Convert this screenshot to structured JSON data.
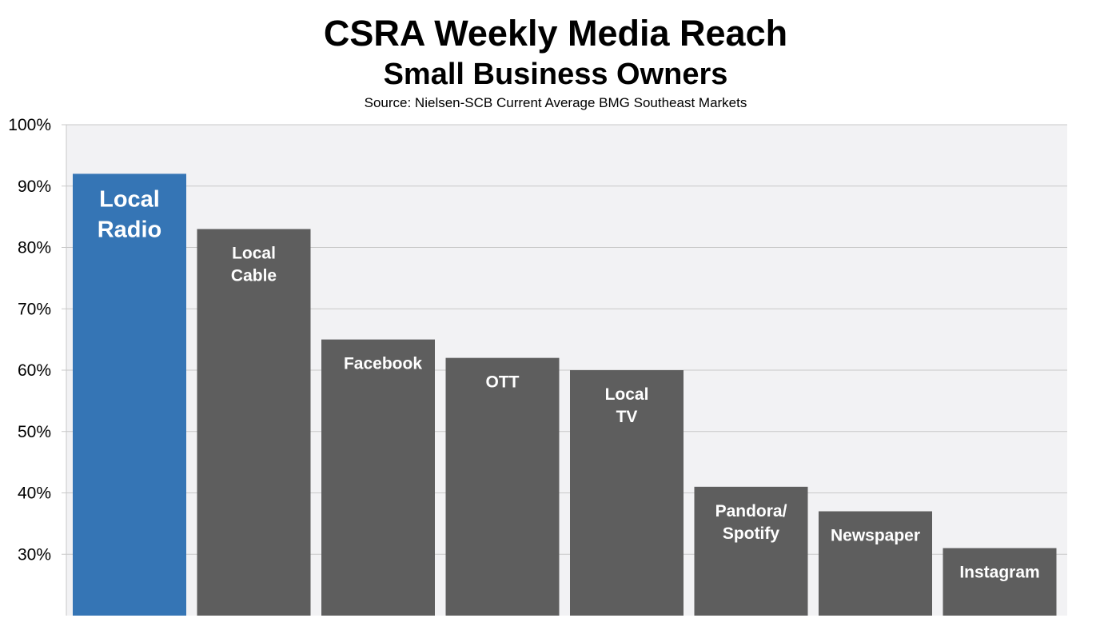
{
  "chart_data": {
    "type": "bar",
    "title": "CSRA Weekly Media Reach",
    "subtitle": "Small Business Owners",
    "source": "Source: Nielsen-SCB  Current Average BMG Southeast Markets",
    "categories": [
      "Local Radio",
      "Local Cable",
      "Facebook",
      "OTT",
      "Local TV",
      "Pandora/ Spotify",
      "Newspaper",
      "Instagram"
    ],
    "bar_labels": [
      [
        "Local",
        "Radio"
      ],
      [
        "Local",
        "Cable"
      ],
      [
        "Facebook"
      ],
      [
        "OTT"
      ],
      [
        "Local",
        "TV"
      ],
      [
        "Pandora/",
        "Spotify"
      ],
      [
        "Newspaper"
      ],
      [
        "Instagram"
      ]
    ],
    "values": [
      92,
      83,
      65,
      62,
      60,
      41,
      37,
      31
    ],
    "ylim": [
      20,
      100
    ],
    "yticks": [
      30,
      40,
      50,
      60,
      70,
      80,
      90,
      100
    ],
    "ytick_labels": [
      "30%",
      "40%",
      "50%",
      "60%",
      "70%",
      "80%",
      "90%",
      "100%"
    ],
    "grid": true,
    "colors": {
      "highlight": "#3575B5",
      "bar": "#5E5E5E",
      "plot_background": "#F2F2F4",
      "grid": "#C8C8C8",
      "label": "#FFFFFF"
    }
  }
}
